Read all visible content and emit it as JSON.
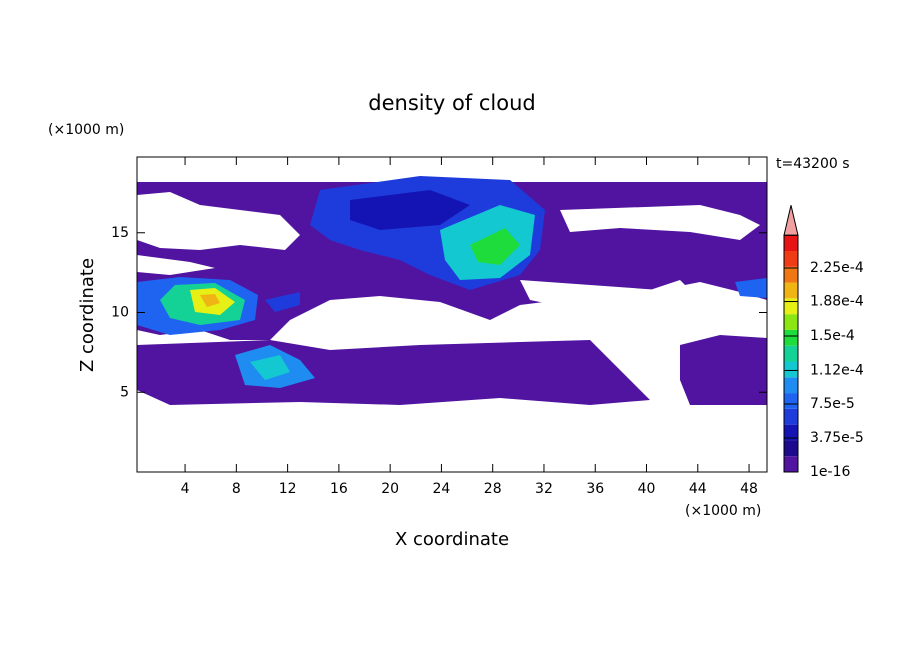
{
  "chart_data": {
    "type": "contour",
    "title": "density of cloud",
    "xlabel": "X coordinate",
    "ylabel": "Z coordinate",
    "xunit": "(×1000 m)",
    "yunit": "(×1000 m)",
    "annotation": "t=43200 s",
    "xlim": [
      0.25,
      49.4
    ],
    "xticks": [
      4,
      8,
      12,
      16,
      20,
      24,
      28,
      32,
      36,
      40,
      44,
      48
    ],
    "ylim": [
      0,
      19.75
    ],
    "yticks": [
      5,
      10,
      15
    ],
    "clim": [
      1e-16,
      0.00024375
    ],
    "colorbar_ticks": [
      1e-16,
      {
        "value": 3.75e-05,
        "label": "3.75e-5"
      },
      {
        "value": 7.5e-05,
        "label": "7.5e-5"
      },
      {
        "value": 0.000112,
        "label": "1.12e-4"
      },
      {
        "value": 0.00015,
        "label": "1.5e-4"
      },
      {
        "value": 0.000188,
        "label": "1.88e-4"
      },
      {
        "value": 0.000225,
        "label": "2.25e-4"
      }
    ],
    "colors": [
      "#5014a0",
      "#1e0a8c",
      "#1414b4",
      "#1e3cdc",
      "#1e64f0",
      "#1e8cf0",
      "#14c8d2",
      "#14d296",
      "#1edc3c",
      "#8ce614",
      "#e6f014",
      "#f0b414",
      "#f07814",
      "#f03c14",
      "#e61414"
    ],
    "extend_color": "#f0a0a0"
  }
}
